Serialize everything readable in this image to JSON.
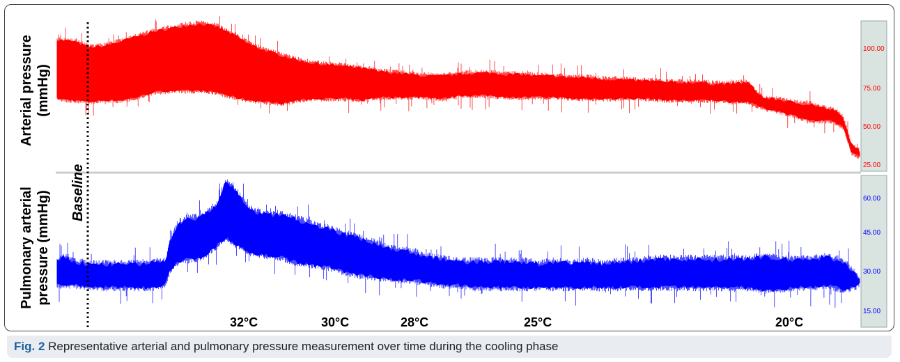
{
  "caption": {
    "label": "Fig. 2",
    "text": " Representative arterial and pulmonary pressure measurement over time during the cooling phase"
  },
  "baseline_label": "Baseline",
  "temperature_labels": [
    "32°C",
    "30°C",
    "28°C",
    "25°C",
    "20°C"
  ],
  "colors": {
    "arterial": "#ff0000",
    "pulmonary": "#0000ff",
    "axis_panel": "#d9e3e0"
  },
  "chart_data": [
    {
      "type": "area",
      "ylabel": [
        "Arterial pressure",
        "(mmHg)"
      ],
      "yticks": [
        "100.00",
        "75.00",
        "50.00",
        "25.00"
      ],
      "ylim": [
        10,
        105
      ],
      "grid": false,
      "series": [
        {
          "x": [
            0,
            2,
            4,
            6,
            8,
            10,
            12,
            14,
            16,
            18,
            20,
            22,
            24,
            26,
            28,
            30,
            32,
            34,
            36,
            38,
            40,
            42,
            44,
            46,
            48,
            50,
            52,
            54,
            56,
            58,
            60,
            62,
            64,
            66,
            68,
            70,
            72,
            74,
            76,
            78,
            80,
            82,
            84,
            86,
            88,
            90,
            92,
            94,
            96,
            97,
            98,
            99,
            100
          ],
          "upper": [
            93,
            92,
            88,
            89,
            92,
            95,
            98,
            100,
            102,
            103,
            101,
            96,
            90,
            86,
            83,
            80,
            78,
            77,
            76,
            75,
            73,
            72,
            71,
            70,
            70,
            71,
            72,
            72,
            71,
            71,
            70,
            70,
            69,
            69,
            68,
            68,
            67,
            67,
            66,
            66,
            66,
            65,
            65,
            66,
            56,
            55,
            53,
            52,
            49,
            48,
            43,
            26,
            23
          ],
          "lower": [
            56,
            55,
            54,
            55,
            55,
            57,
            60,
            61,
            61,
            61,
            60,
            57,
            55,
            54,
            53,
            55,
            56,
            56,
            56,
            55,
            57,
            57,
            57,
            57,
            56,
            58,
            58,
            58,
            57,
            57,
            57,
            57,
            56,
            56,
            56,
            56,
            56,
            56,
            55,
            55,
            55,
            55,
            54,
            54,
            50,
            48,
            45,
            42,
            42,
            41,
            38,
            22,
            19
          ]
        }
      ]
    },
    {
      "type": "area",
      "ylabel": [
        "Pulmonary arterial",
        "pressure (mmHg)"
      ],
      "yticks": [
        "60.00",
        "45.00",
        "30.00",
        "15.00"
      ],
      "ylim": [
        5,
        62
      ],
      "grid": false,
      "series": [
        {
          "x": [
            0,
            1,
            2,
            4,
            6,
            8,
            10,
            12,
            13.5,
            14,
            15,
            16,
            18,
            20,
            21,
            22,
            23,
            24,
            26,
            28,
            30,
            32,
            34,
            36,
            38,
            40,
            42,
            44,
            46,
            48,
            50,
            52,
            54,
            56,
            58,
            60,
            62,
            64,
            66,
            68,
            70,
            72,
            74,
            76,
            78,
            80,
            82,
            84,
            86,
            88,
            90,
            92,
            94,
            96,
            98,
            100
          ],
          "upper": [
            27,
            29,
            27,
            26,
            26,
            26,
            26,
            27,
            27,
            34,
            42,
            44,
            45,
            50,
            59,
            57,
            52,
            48,
            46,
            46,
            44,
            42,
            40,
            38,
            36,
            34,
            32,
            31,
            29,
            28,
            27,
            27,
            27,
            27,
            27,
            26,
            27,
            26,
            27,
            26,
            27,
            27,
            28,
            28,
            28,
            28,
            28,
            28,
            28,
            29,
            28,
            28,
            28,
            29,
            27,
            20
          ],
          "lower": [
            18,
            18,
            18,
            17,
            17,
            17,
            17,
            17,
            18,
            24,
            27,
            28,
            29,
            34,
            37,
            35,
            33,
            31,
            30,
            29,
            27,
            26,
            25,
            23,
            22,
            21,
            20,
            20,
            19,
            18,
            18,
            17,
            17,
            17,
            17,
            17,
            17,
            17,
            17,
            17,
            17,
            17,
            17,
            17,
            17,
            17,
            17,
            17,
            17,
            16,
            16,
            17,
            17,
            18,
            16,
            18
          ]
        }
      ]
    }
  ]
}
